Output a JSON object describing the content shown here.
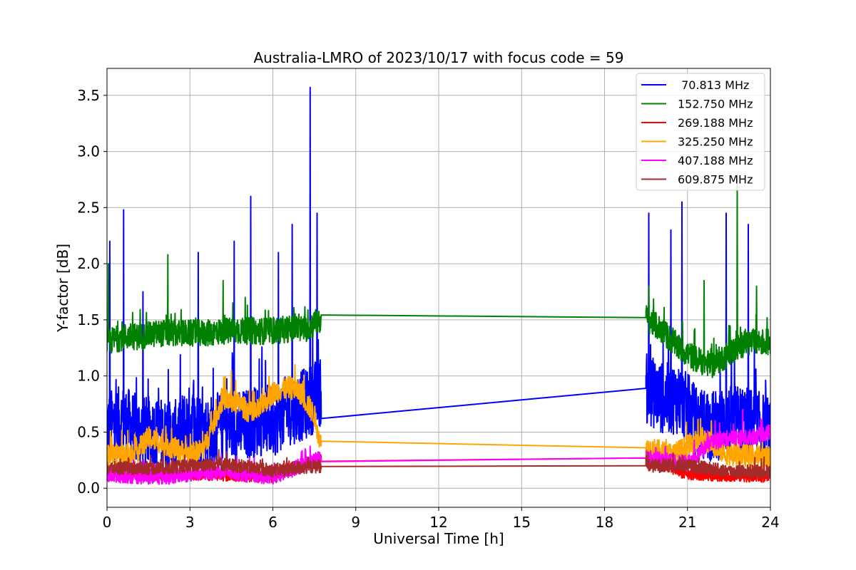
{
  "chart_data": {
    "type": "line",
    "title": "Australia-LMRO of 2023/10/17 with focus code = 59",
    "xlabel": "Universal Time [h]",
    "ylabel": "Y-factor [dB]",
    "xlim": [
      0,
      24
    ],
    "ylim": [
      -0.17,
      3.74
    ],
    "xticks": [
      0,
      3,
      6,
      9,
      12,
      15,
      18,
      21,
      24
    ],
    "yticks": [
      0.0,
      0.5,
      1.0,
      1.5,
      2.0,
      2.5,
      3.0,
      3.5
    ],
    "xtick_labels": [
      "0",
      "3",
      "6",
      "9",
      "12",
      "15",
      "18",
      "21",
      "24"
    ],
    "ytick_labels": [
      "0.0",
      "0.5",
      "1.0",
      "1.5",
      "2.0",
      "2.5",
      "3.0",
      "3.5"
    ],
    "grid": true,
    "legend_position": "top-right",
    "series": [
      {
        "name": " 70.813 MHz",
        "color": "#0000ff",
        "x": [
          0.0,
          0.6,
          1.2,
          1.8,
          2.4,
          3.0,
          3.6,
          4.2,
          4.8,
          5.4,
          6.0,
          6.6,
          7.2,
          7.75,
          19.5,
          20.1,
          20.7,
          21.3,
          21.9,
          22.5,
          23.1,
          24.0
        ],
        "y": [
          0.55,
          0.6,
          0.5,
          0.5,
          0.45,
          0.6,
          0.5,
          0.55,
          0.55,
          0.6,
          0.6,
          0.7,
          0.75,
          0.87,
          0.89,
          0.8,
          0.8,
          0.6,
          0.55,
          0.6,
          0.6,
          0.5
        ],
        "peaks": [
          [
            0.1,
            2.2
          ],
          [
            0.6,
            2.48
          ],
          [
            1.3,
            1.75
          ],
          [
            3.3,
            2.1
          ],
          [
            4.6,
            2.2
          ],
          [
            5.2,
            2.6
          ],
          [
            6.2,
            2.1
          ],
          [
            6.7,
            2.35
          ],
          [
            7.35,
            3.57
          ],
          [
            7.6,
            2.45
          ],
          [
            19.6,
            2.45
          ],
          [
            20.4,
            2.3
          ],
          [
            20.8,
            2.55
          ],
          [
            22.4,
            2.45
          ],
          [
            23.2,
            2.35
          ]
        ],
        "noise_amplitude": 0.32
      },
      {
        "name": "152.750 MHz",
        "color": "#008000",
        "x": [
          0.0,
          0.6,
          1.2,
          1.8,
          2.4,
          3.0,
          3.6,
          4.2,
          4.8,
          5.4,
          6.0,
          6.6,
          7.2,
          7.75,
          19.5,
          20.1,
          20.7,
          21.3,
          21.9,
          22.5,
          23.1,
          24.0
        ],
        "y": [
          1.3,
          1.35,
          1.35,
          1.38,
          1.38,
          1.38,
          1.38,
          1.4,
          1.4,
          1.4,
          1.4,
          1.42,
          1.42,
          1.51,
          1.52,
          1.4,
          1.25,
          1.15,
          1.1,
          1.2,
          1.3,
          1.3
        ],
        "peaks": [
          [
            0.05,
            2.0
          ],
          [
            2.2,
            2.08
          ],
          [
            4.2,
            1.85
          ],
          [
            5.0,
            1.7
          ],
          [
            19.6,
            1.8
          ],
          [
            21.6,
            1.85
          ],
          [
            22.8,
            2.75
          ],
          [
            23.5,
            1.8
          ]
        ],
        "noise_amplitude": 0.12
      },
      {
        "name": "269.188 MHz",
        "color": "#ff0000",
        "x": [
          0.0,
          3.0,
          6.0,
          7.75,
          19.5,
          21.0,
          24.0
        ],
        "y": [
          0.12,
          0.12,
          0.1,
          0.26,
          0.27,
          0.12,
          0.1
        ],
        "peaks": [],
        "noise_amplitude": 0.05
      },
      {
        "name": "325.250 MHz",
        "color": "#ffa500",
        "x": [
          0.0,
          1.0,
          1.5,
          2.5,
          3.0,
          3.5,
          4.2,
          4.8,
          5.3,
          6.0,
          6.6,
          7.0,
          7.5,
          7.75,
          19.5,
          20.5,
          21.5,
          22.5,
          24.0
        ],
        "y": [
          0.3,
          0.3,
          0.45,
          0.35,
          0.3,
          0.35,
          0.8,
          0.75,
          0.65,
          0.85,
          0.9,
          0.85,
          0.65,
          0.37,
          0.36,
          0.3,
          0.45,
          0.3,
          0.28
        ],
        "peaks": [
          [
            4.5,
            1.05
          ],
          [
            6.8,
            1.1
          ]
        ],
        "noise_amplitude": 0.1
      },
      {
        "name": "407.188 MHz",
        "color": "#ff00ff",
        "x": [
          0.0,
          2.0,
          4.0,
          6.0,
          7.75,
          19.5,
          21.0,
          21.8,
          22.5,
          23.2,
          24.0
        ],
        "y": [
          0.12,
          0.1,
          0.15,
          0.1,
          0.27,
          0.27,
          0.22,
          0.4,
          0.45,
          0.45,
          0.5
        ],
        "peaks": [
          [
            23.0,
            0.7
          ],
          [
            22.0,
            0.6
          ]
        ],
        "noise_amplitude": 0.07
      },
      {
        "name": "609.875 MHz",
        "color": "#a52a2a",
        "x": [
          0.0,
          2.0,
          4.0,
          6.0,
          7.75,
          19.5,
          21.0,
          22.5,
          24.0
        ],
        "y": [
          0.18,
          0.18,
          0.22,
          0.16,
          0.2,
          0.2,
          0.2,
          0.15,
          0.15
        ],
        "peaks": [],
        "noise_amplitude": 0.06
      }
    ]
  }
}
